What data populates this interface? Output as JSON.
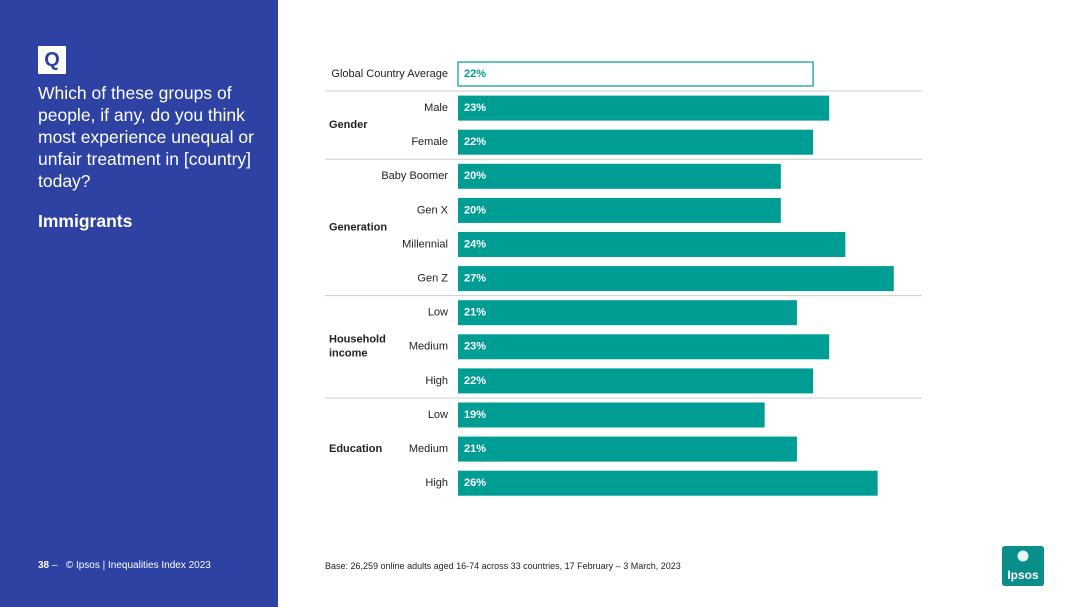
{
  "sidebar": {
    "badge": "Q",
    "question": "Which of these groups of people, if any, do you think most experience unequal or unfair treatment in [country] today?",
    "topic": "Immigrants",
    "page_number": "38",
    "page_sep": "–",
    "copyright": "© Ipsos | Inequalities Index 2023"
  },
  "base_note": "Base: 26,259 online adults aged 16-74 across 33 countries, 17 February – 3 March, 2023",
  "logo": {
    "text": "Ipsos"
  },
  "colors": {
    "sidebar": "#2d42a3",
    "bar": "#009d94",
    "outline": "#009d94",
    "divider": "#cccccc",
    "logo": "#0a8e8a"
  },
  "chart_data": {
    "type": "bar",
    "orientation": "horizontal",
    "unit": "%",
    "xlim": [
      0,
      28
    ],
    "grid": false,
    "average": {
      "label": "Global Country Average",
      "value": 22,
      "value_label": "22%"
    },
    "groups": [
      {
        "name": "Gender",
        "categories": [
          "Male",
          "Female"
        ],
        "values": [
          23,
          22
        ],
        "labels": [
          "23%",
          "22%"
        ]
      },
      {
        "name": "Generation",
        "categories": [
          "Baby Boomer",
          "Gen X",
          "Millennial",
          "Gen Z"
        ],
        "values": [
          20,
          20,
          24,
          27
        ],
        "labels": [
          "20%",
          "20%",
          "24%",
          "27%"
        ]
      },
      {
        "name": "Household income",
        "categories": [
          "Low",
          "Medium",
          "High"
        ],
        "values": [
          21,
          23,
          22
        ],
        "labels": [
          "21%",
          "23%",
          "22%"
        ]
      },
      {
        "name": "Education",
        "categories": [
          "Low",
          "Medium",
          "High"
        ],
        "values": [
          19,
          21,
          26
        ],
        "labels": [
          "19%",
          "21%",
          "26%"
        ]
      }
    ]
  }
}
